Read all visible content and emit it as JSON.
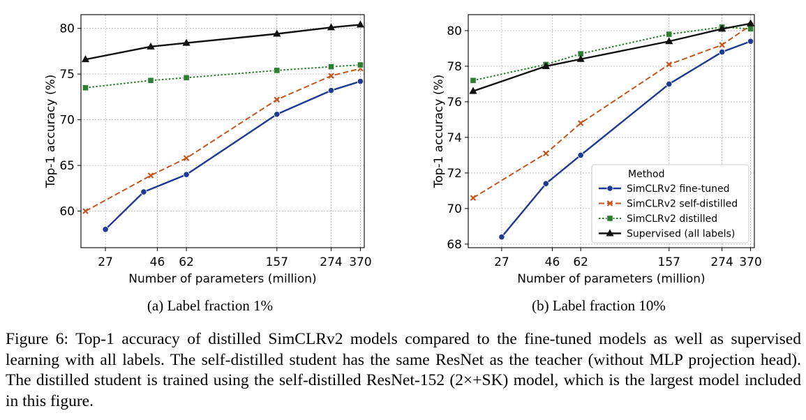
{
  "chart_data": [
    {
      "type": "line",
      "title": "",
      "subcaption": "(a) Label fraction 1%",
      "xlabel": "Number of parameters (million)",
      "ylabel": "Top-1 accuracy (%)",
      "x_scale": "log",
      "xlim": [
        21,
        385
      ],
      "ylim": [
        56,
        81.5
      ],
      "x_ticks": [
        27,
        46,
        62,
        157,
        274,
        370
      ],
      "x_tick_labels": [
        "27",
        "46",
        "62",
        "157",
        "274",
        "370"
      ],
      "y_ticks": [
        60,
        65,
        70,
        75,
        80
      ],
      "y_tick_labels": [
        "60",
        "65",
        "70",
        "75",
        "80"
      ],
      "grid": true,
      "legend": null,
      "series": [
        {
          "name": "SimCLRv2 fine-tuned",
          "color": "#1f3a93",
          "style": "solid",
          "marker": "circle",
          "x": [
            27,
            40,
            62,
            157,
            274,
            370
          ],
          "y": [
            58.0,
            62.1,
            64.0,
            70.6,
            73.2,
            74.2
          ]
        },
        {
          "name": "SimCLRv2 self-distilled",
          "color": "#c4561d",
          "style": "dashed",
          "marker": "x",
          "x": [
            22,
            43,
            62,
            157,
            274,
            370
          ],
          "y": [
            60.0,
            63.9,
            65.8,
            72.2,
            74.8,
            75.6
          ]
        },
        {
          "name": "SimCLRv2 distilled",
          "color": "#2e7d32",
          "style": "dotted",
          "marker": "square",
          "x": [
            22,
            43,
            62,
            157,
            274,
            370
          ],
          "y": [
            73.5,
            74.3,
            74.6,
            75.4,
            75.8,
            76.0
          ]
        },
        {
          "name": "Supervised (all labels)",
          "color": "#111111",
          "style": "solid",
          "marker": "triangle",
          "x": [
            22,
            43,
            62,
            157,
            274,
            370
          ],
          "y": [
            76.6,
            78.0,
            78.4,
            79.4,
            80.1,
            80.4
          ]
        }
      ]
    },
    {
      "type": "line",
      "title": "",
      "subcaption": "(b) Label fraction 10%",
      "xlabel": "Number of parameters (million)",
      "ylabel": "Top-1 accuracy (%)",
      "x_scale": "log",
      "xlim": [
        19,
        385
      ],
      "ylim": [
        67.8,
        80.9
      ],
      "x_ticks": [
        27,
        46,
        62,
        157,
        274,
        370
      ],
      "x_tick_labels": [
        "27",
        "46",
        "62",
        "157",
        "274",
        "370"
      ],
      "y_ticks": [
        68,
        70,
        72,
        74,
        76,
        78,
        80
      ],
      "y_tick_labels": [
        "68",
        "70",
        "72",
        "74",
        "76",
        "78",
        "80"
      ],
      "grid": true,
      "legend": {
        "title": "Method",
        "placement": "lower-right",
        "entries": [
          "SimCLRv2 fine-tuned",
          "SimCLRv2 self-distilled",
          "SimCLRv2 distilled",
          "Supervised (all labels)"
        ]
      },
      "series": [
        {
          "name": "SimCLRv2 fine-tuned",
          "color": "#1f3a93",
          "style": "solid",
          "marker": "circle",
          "x": [
            27,
            43,
            62,
            157,
            274,
            370
          ],
          "y": [
            68.4,
            71.4,
            73.0,
            77.0,
            78.8,
            79.4
          ]
        },
        {
          "name": "SimCLRv2 self-distilled",
          "color": "#c4561d",
          "style": "dashed",
          "marker": "x",
          "x": [
            20,
            43,
            62,
            157,
            274,
            370
          ],
          "y": [
            70.6,
            73.1,
            74.8,
            78.1,
            79.2,
            80.3
          ]
        },
        {
          "name": "SimCLRv2 distilled",
          "color": "#2e7d32",
          "style": "dotted",
          "marker": "square",
          "x": [
            20,
            43,
            62,
            157,
            274,
            370
          ],
          "y": [
            77.2,
            78.1,
            78.7,
            79.8,
            80.2,
            80.1
          ]
        },
        {
          "name": "Supervised (all labels)",
          "color": "#111111",
          "style": "solid",
          "marker": "triangle",
          "x": [
            20,
            43,
            62,
            157,
            274,
            370
          ],
          "y": [
            76.6,
            78.0,
            78.4,
            79.4,
            80.1,
            80.4
          ]
        }
      ]
    }
  ],
  "caption": "Figure 6:  Top-1 accuracy of distilled SimCLRv2 models compared to the fine-tuned models as well as supervised learning with all labels. The self-distilled student has the same ResNet as the teacher (without MLP projection head). The distilled student is trained using the self-distilled ResNet-152 (2×+SK) model, which is the largest model included in this figure."
}
